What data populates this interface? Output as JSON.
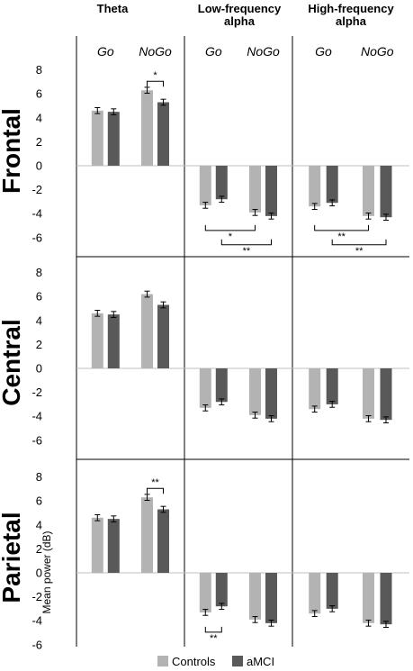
{
  "chart_data": {
    "type": "bar",
    "bands": [
      "Theta",
      "Low-frequency alpha",
      "High-frequency alpha"
    ],
    "band_titles": [
      [
        "Theta"
      ],
      [
        "Low-frequency",
        "alpha"
      ],
      [
        "High-frequency",
        "alpha"
      ]
    ],
    "conditions": [
      "Go",
      "NoGo"
    ],
    "regions": [
      "Frontal",
      "Central",
      "Parietal"
    ],
    "ylabel": "Mean power (dB)",
    "ylim": [
      -6,
      8
    ],
    "yticks": [
      8,
      6,
      4,
      2,
      0,
      -2,
      -4,
      -6
    ],
    "series": [
      {
        "name": "Controls",
        "color": "#b3b3b3"
      },
      {
        "name": "aMCI",
        "color": "#595959"
      }
    ],
    "values": {
      "Frontal": {
        "Theta": {
          "Go": [
            4.6,
            4.5
          ],
          "NoGo": [
            6.3,
            5.3
          ]
        },
        "Low-frequency alpha": {
          "Go": [
            -3.3,
            -2.8
          ],
          "NoGo": [
            -3.9,
            -4.2
          ]
        },
        "High-frequency alpha": {
          "Go": [
            -3.4,
            -3.1
          ],
          "NoGo": [
            -4.2,
            -4.3
          ]
        }
      },
      "Central": {
        "Theta": {
          "Go": [
            4.6,
            4.5
          ],
          "NoGo": [
            6.2,
            5.3
          ]
        },
        "Low-frequency alpha": {
          "Go": [
            -3.3,
            -2.8
          ],
          "NoGo": [
            -3.9,
            -4.2
          ]
        },
        "High-frequency alpha": {
          "Go": [
            -3.4,
            -3.0
          ],
          "NoGo": [
            -4.2,
            -4.3
          ]
        }
      },
      "Parietal": {
        "Theta": {
          "Go": [
            4.6,
            4.5
          ],
          "NoGo": [
            6.3,
            5.3
          ]
        },
        "Low-frequency alpha": {
          "Go": [
            -3.3,
            -2.8
          ],
          "NoGo": [
            -3.9,
            -4.2
          ]
        },
        "High-frequency alpha": {
          "Go": [
            -3.4,
            -3.0
          ],
          "NoGo": [
            -4.2,
            -4.3
          ]
        }
      }
    },
    "errors": 0.25,
    "annotations": [
      {
        "region": "Frontal",
        "band": "Theta",
        "between": "NoGo Controls vs NoGo aMCI",
        "label": "*"
      },
      {
        "region": "Frontal",
        "band": "Low-frequency alpha",
        "between": "Go Controls vs NoGo Controls",
        "label": "*"
      },
      {
        "region": "Frontal",
        "band": "Low-frequency alpha",
        "between": "Go aMCI vs NoGo aMCI",
        "label": "**"
      },
      {
        "region": "Frontal",
        "band": "High-frequency alpha",
        "between": "Go Controls vs NoGo Controls",
        "label": "**"
      },
      {
        "region": "Frontal",
        "band": "High-frequency alpha",
        "between": "Go aMCI vs NoGo aMCI",
        "label": "**"
      },
      {
        "region": "Parietal",
        "band": "Theta",
        "between": "NoGo Controls vs NoGo aMCI",
        "label": "**"
      },
      {
        "region": "Parietal",
        "band": "Low-frequency alpha",
        "between": "Go Controls vs Go aMCI",
        "label": "**"
      }
    ],
    "legend": {
      "position": "bottom",
      "entries": [
        "Controls",
        "aMCI"
      ]
    }
  }
}
